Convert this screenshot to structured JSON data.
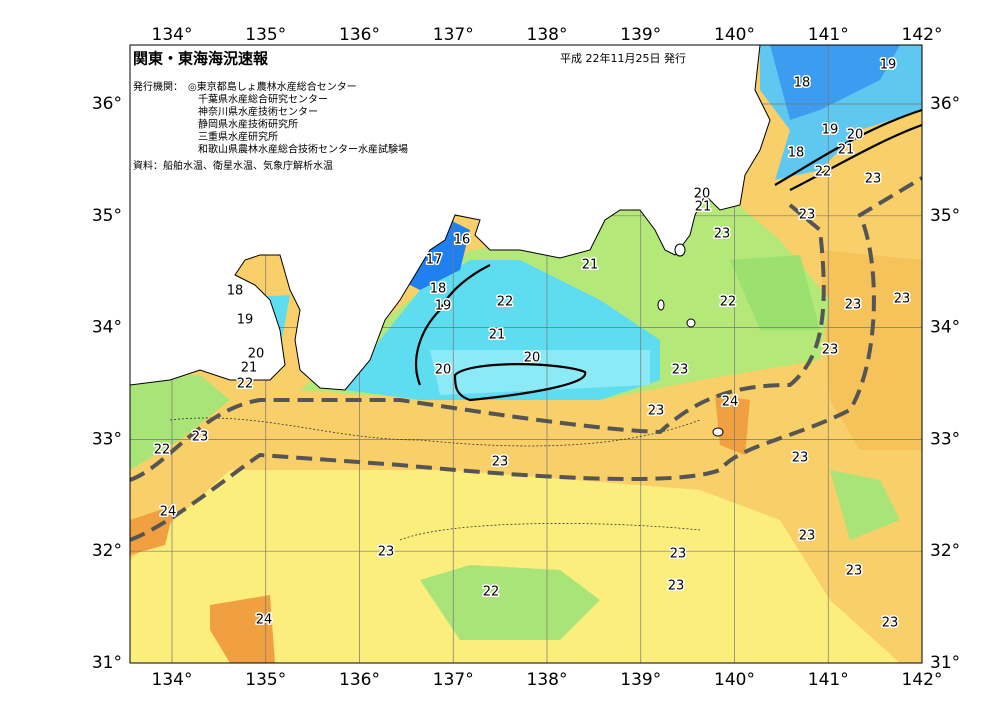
{
  "header": {
    "title": "関東・東海海況速報",
    "date": "平成 22年11月25日 発行"
  },
  "issuers": {
    "label": "発行機関：",
    "items": [
      "◎東京都島しょ農林水産総合センター",
      "千葉県水産総合研究センター",
      "神奈川県水産技術センター",
      "静岡県水産技術研究所",
      "三重県水産研究所",
      "和歌山県農林水産総合技術センター水産試験場"
    ]
  },
  "source": "資料：船舶水温、衛星水温、気象庁解析水温",
  "longitude_labels": [
    "134°",
    "135°",
    "136°",
    "137°",
    "138°",
    "139°",
    "140°",
    "141°",
    "142°"
  ],
  "latitude_labels": [
    "31°",
    "32°",
    "33°",
    "34°",
    "35°",
    "36°"
  ],
  "contour_labels": [
    "18",
    "19",
    "19",
    "20",
    "21",
    "18",
    "22",
    "23",
    "20",
    "21",
    "23",
    "23",
    "16",
    "17",
    "18",
    "19",
    "18",
    "19",
    "21",
    "22",
    "23",
    "23",
    "22",
    "21",
    "20",
    "21",
    "22",
    "20",
    "20",
    "23",
    "23",
    "24",
    "23",
    "23",
    "22",
    "23",
    "23",
    "24",
    "23",
    "23",
    "23",
    "23",
    "23",
    "22",
    "24",
    "23"
  ]
}
